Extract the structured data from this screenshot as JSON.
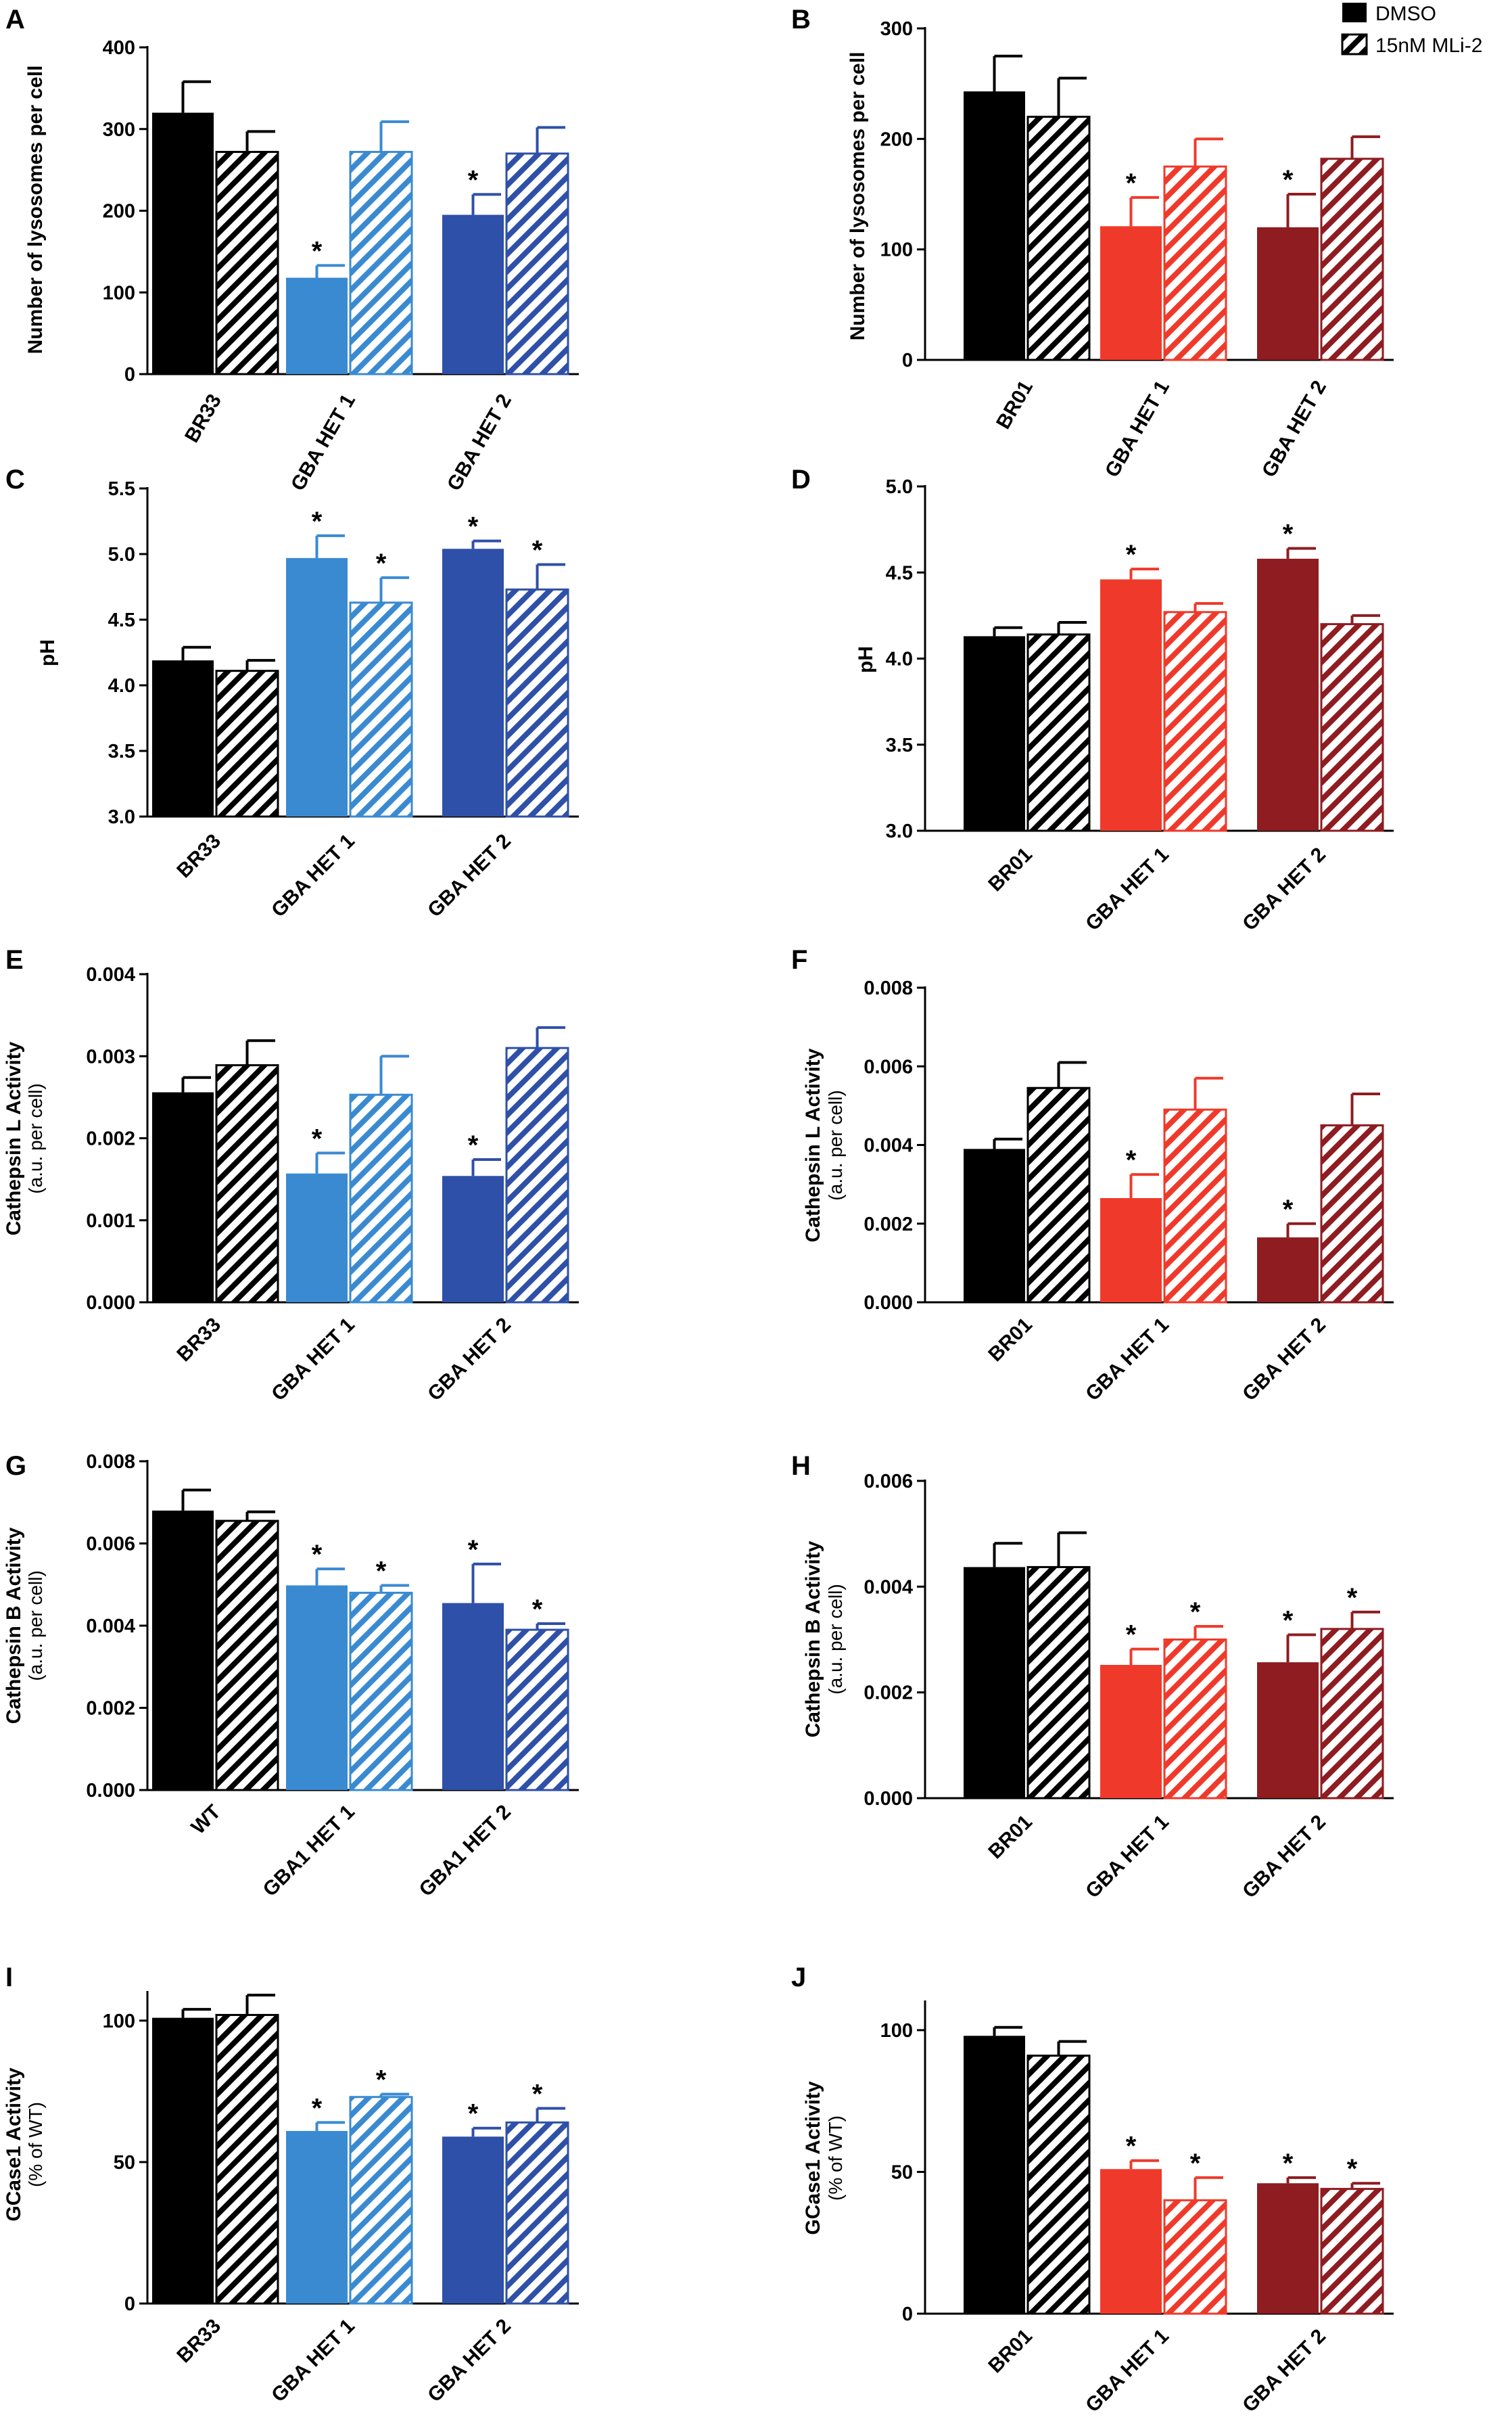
{
  "legend": {
    "items": [
      {
        "label": "DMSO",
        "style": "solid"
      },
      {
        "label": "15nM MLi-2",
        "style": "hatched"
      }
    ]
  },
  "colors": {
    "black": "#000000",
    "light_blue": "#3a8ad2",
    "dark_blue": "#2f50a8",
    "red": "#ef3a2b",
    "dark_red": "#8e1c20"
  },
  "chart_data": [
    {
      "type": "bar",
      "panel": "A",
      "ylabel": "Number of lysosomes per cell",
      "ylabel2": "",
      "ylim": [
        0,
        400
      ],
      "ticks": [
        "0",
        "100",
        "200",
        "300",
        "400"
      ],
      "tick_values": [
        0,
        100,
        200,
        300,
        400
      ],
      "categories": [
        "BR33",
        "GBA HET 1",
        "GBA HET 2"
      ],
      "category_colors": [
        "#000000",
        "#3a8ad2",
        "#2f50a8"
      ],
      "series": [
        {
          "name": "DMSO",
          "values": [
            320,
            118,
            195
          ],
          "errors": [
            38,
            15,
            25
          ],
          "significant": [
            false,
            true,
            true
          ]
        },
        {
          "name": "15nM MLi-2",
          "values": [
            272,
            272,
            270
          ],
          "errors": [
            25,
            37,
            32
          ],
          "significant": [
            false,
            false,
            false
          ]
        }
      ]
    },
    {
      "type": "bar",
      "panel": "B",
      "ylabel": "Number of lysosomes per cell",
      "ylabel2": "",
      "ylim": [
        0,
        300
      ],
      "ticks": [
        "0",
        "100",
        "200",
        "300"
      ],
      "tick_values": [
        0,
        100,
        200,
        300
      ],
      "categories": [
        "BR01",
        "GBA HET 1",
        "GBA HET 2"
      ],
      "category_colors": [
        "#000000",
        "#ef3a2b",
        "#8e1c20"
      ],
      "series": [
        {
          "name": "DMSO",
          "values": [
            243,
            121,
            120
          ],
          "errors": [
            32,
            26,
            30
          ],
          "significant": [
            false,
            true,
            true
          ]
        },
        {
          "name": "15nM MLi-2",
          "values": [
            220,
            175,
            182
          ],
          "errors": [
            35,
            25,
            20
          ],
          "significant": [
            false,
            false,
            false
          ]
        }
      ]
    },
    {
      "type": "bar",
      "panel": "C",
      "ylabel": "pH",
      "ylabel2": "",
      "ylim": [
        3.0,
        5.5
      ],
      "ticks": [
        "3.0",
        "3.5",
        "4.0",
        "4.5",
        "5.0",
        "5.5"
      ],
      "tick_values": [
        3.0,
        3.5,
        4.0,
        4.5,
        5.0,
        5.5
      ],
      "categories": [
        "BR33",
        "GBA HET 1",
        "GBA HET 2"
      ],
      "category_colors": [
        "#000000",
        "#3a8ad2",
        "#2f50a8"
      ],
      "series": [
        {
          "name": "DMSO",
          "values": [
            4.19,
            4.97,
            5.04
          ],
          "errors": [
            0.1,
            0.17,
            0.06
          ],
          "significant": [
            false,
            true,
            true
          ]
        },
        {
          "name": "15nM MLi-2",
          "values": [
            4.11,
            4.63,
            4.73
          ],
          "errors": [
            0.08,
            0.19,
            0.19
          ],
          "significant": [
            false,
            true,
            true
          ]
        }
      ]
    },
    {
      "type": "bar",
      "panel": "D",
      "ylabel": "pH",
      "ylabel2": "",
      "ylim": [
        3.0,
        5.0
      ],
      "ticks": [
        "3.0",
        "3.5",
        "4.0",
        "4.5",
        "5.0"
      ],
      "tick_values": [
        3.0,
        3.5,
        4.0,
        4.5,
        5.0
      ],
      "categories": [
        "BR01",
        "GBA HET 1",
        "GBA HET 2"
      ],
      "category_colors": [
        "#000000",
        "#ef3a2b",
        "#8e1c20"
      ],
      "series": [
        {
          "name": "DMSO",
          "values": [
            4.13,
            4.46,
            4.58
          ],
          "errors": [
            0.05,
            0.06,
            0.06
          ],
          "significant": [
            false,
            true,
            true
          ]
        },
        {
          "name": "15nM MLi-2",
          "values": [
            4.14,
            4.27,
            4.2
          ],
          "errors": [
            0.07,
            0.05,
            0.05
          ],
          "significant": [
            false,
            false,
            false
          ]
        }
      ]
    },
    {
      "type": "bar",
      "panel": "E",
      "ylabel": "Cathepsin L Activity",
      "ylabel2": "(a.u. per cell)",
      "ylim": [
        0,
        0.004
      ],
      "ticks": [
        "0.000",
        "0.001",
        "0.002",
        "0.003",
        "0.004"
      ],
      "tick_values": [
        0,
        0.001,
        0.002,
        0.003,
        0.004
      ],
      "categories": [
        "BR33",
        "GBA HET 1",
        "GBA HET 2"
      ],
      "category_colors": [
        "#000000",
        "#3a8ad2",
        "#2f50a8"
      ],
      "series": [
        {
          "name": "DMSO",
          "values": [
            0.00256,
            0.00157,
            0.00154
          ],
          "errors": [
            0.00018,
            0.00025,
            0.0002
          ],
          "significant": [
            false,
            true,
            true
          ]
        },
        {
          "name": "15nM MLi-2",
          "values": [
            0.00289,
            0.00253,
            0.0031
          ],
          "errors": [
            0.0003,
            0.00047,
            0.00025
          ],
          "significant": [
            false,
            false,
            false
          ]
        }
      ]
    },
    {
      "type": "bar",
      "panel": "F",
      "ylabel": "Cathepsin L Activity",
      "ylabel2": "(a.u. per cell)",
      "ylim": [
        0,
        0.008
      ],
      "ticks": [
        "0.000",
        "0.002",
        "0.004",
        "0.006",
        "0.008"
      ],
      "tick_values": [
        0,
        0.002,
        0.004,
        0.006,
        0.008
      ],
      "categories": [
        "BR01",
        "GBA HET 1",
        "GBA HET 2"
      ],
      "category_colors": [
        "#000000",
        "#ef3a2b",
        "#8e1c20"
      ],
      "series": [
        {
          "name": "DMSO",
          "values": [
            0.0039,
            0.00265,
            0.00165
          ],
          "errors": [
            0.00025,
            0.0006,
            0.00035
          ],
          "significant": [
            false,
            true,
            true
          ]
        },
        {
          "name": "15nM MLi-2",
          "values": [
            0.00545,
            0.0049,
            0.0045
          ],
          "errors": [
            0.00065,
            0.0008,
            0.0008
          ],
          "significant": [
            false,
            false,
            false
          ]
        }
      ]
    },
    {
      "type": "bar",
      "panel": "G",
      "ylabel": "Cathepsin B Activity",
      "ylabel2": "(a.u. per cell)",
      "ylim": [
        0,
        0.008
      ],
      "ticks": [
        "0.000",
        "0.002",
        "0.004",
        "0.006",
        "0.008"
      ],
      "tick_values": [
        0,
        0.002,
        0.004,
        0.006,
        0.008
      ],
      "categories": [
        "WT",
        "GBA1  HET 1",
        "GBA1  HET 2"
      ],
      "category_colors": [
        "#000000",
        "#3a8ad2",
        "#2f50a8"
      ],
      "series": [
        {
          "name": "DMSO",
          "values": [
            0.0068,
            0.00498,
            0.00455
          ],
          "errors": [
            0.0005,
            0.0004,
            0.00095
          ],
          "significant": [
            false,
            true,
            true
          ]
        },
        {
          "name": "15nM MLi-2",
          "values": [
            0.00655,
            0.0048,
            0.0039
          ],
          "errors": [
            0.00022,
            0.00018,
            0.00015
          ],
          "significant": [
            false,
            true,
            true
          ]
        }
      ]
    },
    {
      "type": "bar",
      "panel": "H",
      "ylabel": "Cathepsin B Activity",
      "ylabel2": "(a.u. per cell)",
      "ylim": [
        0,
        0.006
      ],
      "ticks": [
        "0.000",
        "0.002",
        "0.004",
        "0.006"
      ],
      "tick_values": [
        0,
        0.002,
        0.004,
        0.006
      ],
      "categories": [
        "BR01",
        "GBA HET 1",
        "GBA HET 2"
      ],
      "category_colors": [
        "#000000",
        "#ef3a2b",
        "#8e1c20"
      ],
      "series": [
        {
          "name": "DMSO",
          "values": [
            0.00437,
            0.00252,
            0.00257
          ],
          "errors": [
            0.00045,
            0.0003,
            0.00052
          ],
          "significant": [
            false,
            true,
            true
          ]
        },
        {
          "name": "15nM MLi-2",
          "values": [
            0.00437,
            0.003,
            0.0032
          ],
          "errors": [
            0.00065,
            0.00025,
            0.00032
          ],
          "significant": [
            false,
            true,
            true
          ]
        }
      ]
    },
    {
      "type": "bar",
      "panel": "I",
      "ylabel": "GCase1 Activity",
      "ylabel2": "(% of WT)",
      "ylim": [
        0,
        110
      ],
      "ticks": [
        "0",
        "50",
        "100"
      ],
      "tick_values": [
        0,
        50,
        100
      ],
      "categories": [
        "BR33",
        "GBA HET 1",
        "GBA HET 2"
      ],
      "category_colors": [
        "#000000",
        "#3a8ad2",
        "#2f50a8"
      ],
      "series": [
        {
          "name": "DMSO",
          "values": [
            101,
            61,
            59
          ],
          "errors": [
            3,
            3,
            3
          ],
          "significant": [
            false,
            true,
            true
          ]
        },
        {
          "name": "15nM MLi-2",
          "values": [
            102,
            73,
            64
          ],
          "errors": [
            7,
            1,
            5
          ],
          "significant": [
            false,
            true,
            true
          ]
        }
      ]
    },
    {
      "type": "bar",
      "panel": "J",
      "ylabel": "GCase1 Activity",
      "ylabel2": "(% of WT)",
      "ylim": [
        0,
        110
      ],
      "ticks": [
        "0",
        "50",
        "100"
      ],
      "tick_values": [
        0,
        50,
        100
      ],
      "categories": [
        "BR01",
        "GBA HET 1",
        "GBA HET 2"
      ],
      "category_colors": [
        "#000000",
        "#ef3a2b",
        "#8e1c20"
      ],
      "series": [
        {
          "name": "DMSO",
          "values": [
            98,
            51,
            46
          ],
          "errors": [
            3,
            3,
            2
          ],
          "significant": [
            false,
            true,
            true
          ]
        },
        {
          "name": "15nM MLi-2",
          "values": [
            91,
            40,
            44
          ],
          "errors": [
            5,
            8,
            2
          ],
          "significant": [
            false,
            true,
            true
          ]
        }
      ]
    }
  ]
}
